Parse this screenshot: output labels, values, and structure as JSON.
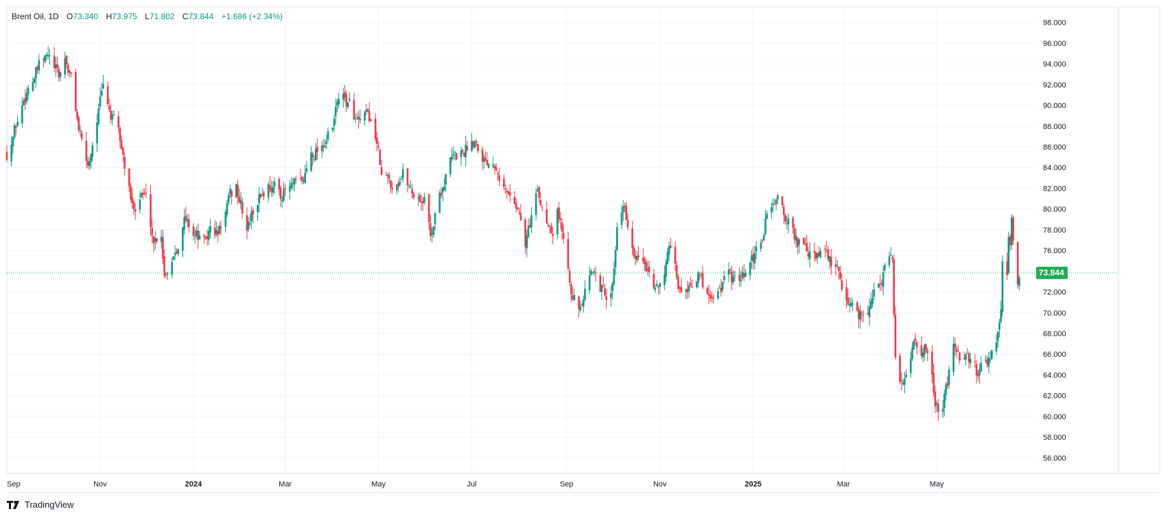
{
  "legend": {
    "symbol": "Brent Oil, 1D",
    "open_label": "O",
    "open": "73.340",
    "high_label": "H",
    "high": "73.975",
    "low_label": "L",
    "low": "71.802",
    "close_label": "C",
    "close": "73.844",
    "change": "+1.686 (+2.34%)"
  },
  "footer": {
    "brand": "TradingView",
    "logo_icon": "tradingview-logo-icon"
  },
  "colors": {
    "up": "#089981",
    "down": "#f23645",
    "price_tag": "#22ab55",
    "grid": "#f0f3fa",
    "text": "#131722",
    "axis_line": "#e0e3eb"
  },
  "chart_data": {
    "type": "candlestick",
    "interval": "1D",
    "y_axis": {
      "side": "right",
      "ylim": [
        54.5,
        99.5
      ],
      "ticks": [
        "56.000",
        "58.000",
        "60.000",
        "62.000",
        "64.000",
        "66.000",
        "68.000",
        "70.000",
        "72.000",
        "74.000",
        "76.000",
        "78.000",
        "80.000",
        "82.000",
        "84.000",
        "86.000",
        "88.000",
        "90.000",
        "92.000",
        "94.000",
        "96.000",
        "98.000"
      ]
    },
    "x_axis": {
      "xlim": [
        "2023-09-01",
        "2025-07-05"
      ],
      "ticks": [
        {
          "label": "Sep",
          "date": "2023-09-01",
          "bold": false
        },
        {
          "label": "Nov",
          "date": "2023-11-01",
          "bold": false
        },
        {
          "label": "2024",
          "date": "2024-01-01",
          "bold": true
        },
        {
          "label": "Mar",
          "date": "2024-03-01",
          "bold": false
        },
        {
          "label": "May",
          "date": "2024-05-01",
          "bold": false
        },
        {
          "label": "Jul",
          "date": "2024-07-01",
          "bold": false
        },
        {
          "label": "Sep",
          "date": "2024-09-01",
          "bold": false
        },
        {
          "label": "Nov",
          "date": "2024-11-01",
          "bold": false
        },
        {
          "label": "2025",
          "date": "2025-01-01",
          "bold": true
        },
        {
          "label": "Mar",
          "date": "2025-03-01",
          "bold": false
        },
        {
          "label": "May",
          "date": "2025-05-01",
          "bold": false
        }
      ]
    },
    "last_price": {
      "value": 73.844,
      "label": "73.844"
    },
    "close_path": [
      [
        "2023-09-01",
        85.5
      ],
      [
        "2023-09-08",
        88.5
      ],
      [
        "2023-09-15",
        92.0
      ],
      [
        "2023-09-22",
        93.5
      ],
      [
        "2023-09-28",
        94.5
      ],
      [
        "2023-10-05",
        92.5
      ],
      [
        "2023-10-09",
        94.5
      ],
      [
        "2023-10-13",
        92.5
      ],
      [
        "2023-10-20",
        86.0
      ],
      [
        "2023-10-24",
        84.0
      ],
      [
        "2023-10-30",
        89.0
      ],
      [
        "2023-11-03",
        91.5
      ],
      [
        "2023-11-08",
        89.0
      ],
      [
        "2023-11-13",
        87.0
      ],
      [
        "2023-11-16",
        85.0
      ],
      [
        "2023-11-22",
        80.0
      ],
      [
        "2023-11-28",
        82.0
      ],
      [
        "2023-12-01",
        81.0
      ],
      [
        "2023-12-06",
        77.0
      ],
      [
        "2023-12-11",
        78.0
      ],
      [
        "2023-12-13",
        74.0
      ],
      [
        "2023-12-18",
        75.5
      ],
      [
        "2023-12-26",
        79.0
      ],
      [
        "2024-01-03",
        77.5
      ],
      [
        "2024-01-08",
        76.5
      ],
      [
        "2024-01-12",
        78.0
      ],
      [
        "2024-01-17",
        77.5
      ],
      [
        "2024-01-24",
        80.5
      ],
      [
        "2024-01-29",
        82.0
      ],
      [
        "2024-02-05",
        78.0
      ],
      [
        "2024-02-12",
        81.0
      ],
      [
        "2024-02-20",
        82.5
      ],
      [
        "2024-02-28",
        81.5
      ],
      [
        "2024-03-05",
        82.0
      ],
      [
        "2024-03-12",
        82.0
      ],
      [
        "2024-03-18",
        85.5
      ],
      [
        "2024-03-25",
        86.5
      ],
      [
        "2024-04-01",
        87.5
      ],
      [
        "2024-04-05",
        91.0
      ],
      [
        "2024-04-12",
        90.0
      ],
      [
        "2024-04-18",
        88.0
      ],
      [
        "2024-04-25",
        88.5
      ],
      [
        "2024-04-30",
        86.5
      ],
      [
        "2024-05-03",
        83.0
      ],
      [
        "2024-05-10",
        82.5
      ],
      [
        "2024-05-17",
        83.5
      ],
      [
        "2024-05-24",
        81.5
      ],
      [
        "2024-05-31",
        81.0
      ],
      [
        "2024-06-04",
        77.5
      ],
      [
        "2024-06-10",
        81.5
      ],
      [
        "2024-06-17",
        84.5
      ],
      [
        "2024-06-25",
        85.5
      ],
      [
        "2024-07-03",
        87.0
      ],
      [
        "2024-07-10",
        85.0
      ],
      [
        "2024-07-17",
        85.0
      ],
      [
        "2024-07-24",
        81.5
      ],
      [
        "2024-07-31",
        80.5
      ],
      [
        "2024-08-05",
        76.5
      ],
      [
        "2024-08-12",
        81.5
      ],
      [
        "2024-08-19",
        79.0
      ],
      [
        "2024-08-23",
        78.5
      ],
      [
        "2024-08-26",
        80.5
      ],
      [
        "2024-08-30",
        77.0
      ],
      [
        "2024-09-04",
        73.0
      ],
      [
        "2024-09-10",
        70.0
      ],
      [
        "2024-09-13",
        71.5
      ],
      [
        "2024-09-20",
        74.5
      ],
      [
        "2024-09-26",
        71.5
      ],
      [
        "2024-09-30",
        71.5
      ],
      [
        "2024-10-04",
        78.5
      ],
      [
        "2024-10-07",
        80.5
      ],
      [
        "2024-10-10",
        79.0
      ],
      [
        "2024-10-15",
        74.5
      ],
      [
        "2024-10-22",
        74.5
      ],
      [
        "2024-10-28",
        71.5
      ],
      [
        "2024-10-31",
        73.0
      ],
      [
        "2024-11-07",
        75.5
      ],
      [
        "2024-11-14",
        72.0
      ],
      [
        "2024-11-20",
        73.0
      ],
      [
        "2024-11-25",
        74.0
      ],
      [
        "2024-12-02",
        72.0
      ],
      [
        "2024-12-09",
        72.5
      ],
      [
        "2024-12-16",
        73.5
      ],
      [
        "2024-12-23",
        72.5
      ],
      [
        "2024-12-30",
        74.0
      ],
      [
        "2025-01-06",
        76.5
      ],
      [
        "2025-01-10",
        79.5
      ],
      [
        "2025-01-15",
        81.0
      ],
      [
        "2025-01-20",
        80.0
      ],
      [
        "2025-01-27",
        77.5
      ],
      [
        "2025-02-03",
        76.0
      ],
      [
        "2025-02-10",
        75.0
      ],
      [
        "2025-02-17",
        75.5
      ],
      [
        "2025-02-24",
        74.0
      ],
      [
        "2025-03-03",
        71.5
      ],
      [
        "2025-03-07",
        70.5
      ],
      [
        "2025-03-12",
        70.0
      ],
      [
        "2025-03-19",
        71.0
      ],
      [
        "2025-03-26",
        73.5
      ],
      [
        "2025-04-02",
        74.9
      ],
      [
        "2025-04-04",
        65.5
      ],
      [
        "2025-04-08",
        62.8
      ],
      [
        "2025-04-11",
        64.8
      ],
      [
        "2025-04-17",
        67.5
      ],
      [
        "2025-04-24",
        66.3
      ],
      [
        "2025-04-30",
        61.5
      ],
      [
        "2025-05-05",
        60.5
      ],
      [
        "2025-05-09",
        63.8
      ],
      [
        "2025-05-13",
        66.6
      ],
      [
        "2025-05-20",
        65.5
      ],
      [
        "2025-05-27",
        64.1
      ],
      [
        "2025-06-02",
        65.6
      ],
      [
        "2025-06-09",
        66.9
      ],
      [
        "2025-06-12",
        69.8
      ],
      [
        "2025-06-13",
        74.2
      ],
      [
        "2025-06-16",
        73.2
      ],
      [
        "2025-06-17",
        76.5
      ],
      [
        "2025-06-18",
        76.7
      ],
      [
        "2025-06-19",
        78.9
      ],
      [
        "2025-06-20",
        77.0
      ],
      [
        "2025-06-23",
        72.2
      ],
      [
        "2025-06-24",
        73.8
      ]
    ]
  }
}
